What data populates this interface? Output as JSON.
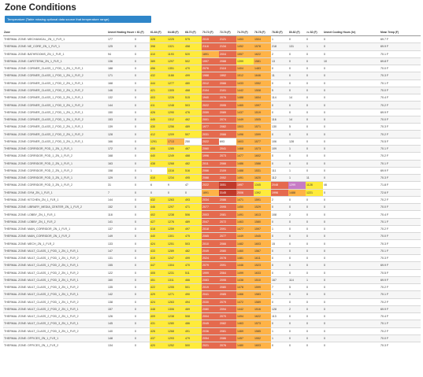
{
  "page": {
    "title": "Zone Conditions",
    "button_label": "Temperature (Table missing optional data source that temperature range)"
  },
  "table": {
    "columns": [
      "Zone",
      "Unmet Heating Hours (hr)",
      "< 61 (F)",
      "61-64 (F)",
      "64-68 (F)",
      "68-70 (F)",
      "70-72 (F)",
      "72-74 (F)",
      "74-76 (F)",
      "76-78 (F)",
      "78-80 (F)",
      "80-82 (F)",
      ">= 82 (F)",
      "Unmet Cooling Hours (hr)",
      "Mean Temp (F)"
    ],
    "rows": [
      {
        "zone": "THERMAL ZONE: MECHANICAL_ZN_1_FLR_1",
        "values": [
          "177",
          "0",
          "428",
          "1225",
          "575",
          "2015",
          "2121",
          "1453",
          "1504",
          "1",
          "0",
          "0",
          "0",
          "69.7 F"
        ]
      },
      {
        "zone": "THERMAL ZONE: NE_CORE_ZN_1_FLR_1",
        "values": [
          "125",
          "0",
          "398",
          "1321",
          "458",
          "2118",
          "2134",
          "1452",
          "1578",
          "218",
          "131",
          "1",
          "0",
          "69.9 F"
        ]
      },
      {
        "zone": "THERMAL ZONE: BATHROOMS_ZN_1_FLR_1",
        "values": [
          "94",
          "0",
          "410",
          "1193",
          "520",
          "1891",
          "2004",
          "1557",
          "1622",
          "2",
          "0",
          "0",
          "0",
          "70.1 F"
        ]
      },
      {
        "zone": "THERMAL ZONE: CAFETERIA_ZN_1_FLR_1",
        "values": [
          "136",
          "0",
          "389",
          "1297",
          "502",
          "1997",
          "2088",
          "1399",
          "1581",
          "13",
          "0",
          "0",
          "10",
          "69.8 F"
        ]
      },
      {
        "zone": "THERMAL ZONE: CORNER_CLASS_1_POD_1_ZN_1_FLR_1",
        "values": [
          "188",
          "0",
          "456",
          "1351",
          "470",
          "2076",
          "2118",
          "1404",
          "1483",
          "0",
          "0",
          "0",
          "0",
          "70.0 F"
        ]
      },
      {
        "zone": "THERMAL ZONE: CORNER_CLASS_1_POD_1_ZN_1_FLR_2",
        "values": [
          "171",
          "0",
          "432",
          "1188",
          "499",
          "1988",
          "1992",
          "1512",
          "1646",
          "11",
          "0",
          "0",
          "0",
          "70.3 F"
        ]
      },
      {
        "zone": "THERMAL ZONE: CORNER_CLASS_1_POD_2_ZN_1_FLR_1",
        "values": [
          "168",
          "0",
          "444",
          "1277",
          "480",
          "2012",
          "2066",
          "1433",
          "1552",
          "0",
          "0",
          "0",
          "0",
          "70.1 F"
        ]
      },
      {
        "zone": "THERMAL ZONE: CORNER_CLASS_1_POD_2_ZN_1_FLR_2",
        "values": [
          "146",
          "0",
          "421",
          "1305",
          "468",
          "2104",
          "2101",
          "1442",
          "1508",
          "5",
          "0",
          "0",
          "0",
          "70.0 F"
        ]
      },
      {
        "zone": "THERMAL ZONE: CORNER_CLASS_1_POD_3_ZN_1_FLR_1",
        "values": [
          "132",
          "0",
          "403",
          "1226",
          "515",
          "1940",
          "2076",
          "1488",
          "1604",
          "114",
          "14",
          "0",
          "0",
          "70.4 F"
        ]
      },
      {
        "zone": "THERMAL ZONE: CORNER_CLASS_1_POD_3_ZN_1_FLR_2",
        "values": [
          "144",
          "0",
          "411",
          "1248",
          "503",
          "2022",
          "2095",
          "1465",
          "1597",
          "0",
          "0",
          "0",
          "0",
          "70.2 F"
        ]
      },
      {
        "zone": "THERMAL ZONE: CORNER_CLASS_2_POD_1_ZN_1_FLR_1",
        "values": [
          "150",
          "0",
          "426",
          "1290",
          "476",
          "2059",
          "2089",
          "1437",
          "1519",
          "0",
          "0",
          "0",
          "0",
          "69.9 F"
        ]
      },
      {
        "zone": "THERMAL ZONE: CORNER_CLASS_2_POD_1_ZN_1_FLR_2",
        "values": [
          "153",
          "0",
          "445",
          "1312",
          "462",
          "2001",
          "2074",
          "1449",
          "1505",
          "116",
          "14",
          "0",
          "0",
          "70.0 F"
        ]
      },
      {
        "zone": "THERMAL ZONE: CORNER_CLASS_2_POD_2_ZN_1_FLR_1",
        "values": [
          "139",
          "0",
          "430",
          "1256",
          "489",
          "1977",
          "2082",
          "1503",
          "1571",
          "130",
          "5",
          "0",
          "0",
          "70.3 F"
        ]
      },
      {
        "zone": "THERMAL ZONE: CORNER_CLASS_2_POD_2_ZN_1_FLR_2",
        "values": [
          "128",
          "0",
          "412",
          "1209",
          "507",
          "2031",
          "2066",
          "1496",
          "1599",
          "0",
          "0",
          "0",
          "0",
          "70.2 F"
        ]
      },
      {
        "zone": "THERMAL ZONE: CORNER_CLASS_2_POD_3_ZN_1_FLR_1",
        "values": [
          "166",
          "0",
          "1291",
          "1713",
          "250",
          "2022",
          "693",
          "1603",
          "1577",
          "106",
          "128",
          "0",
          "0",
          "70.5 F"
        ]
      },
      {
        "zone": "THERMAL ZONE: CORRIDOR_POD_1_ZN_1_FLR_1",
        "values": [
          "172",
          "0",
          "455",
          "1285",
          "467",
          "2060",
          "2041",
          "1468",
          "1573",
          "109",
          "1",
          "0",
          "0",
          "70.1 F"
        ]
      },
      {
        "zone": "THERMAL ZONE: CORRIDOR_POD_1_ZN_1_FLR_2",
        "values": [
          "168",
          "0",
          "440",
          "1249",
          "488",
          "1996",
          "2073",
          "1477",
          "1602",
          "0",
          "0",
          "0",
          "0",
          "70.2 F"
        ]
      },
      {
        "zone": "THERMAL ZONE: CORRIDOR_POD_2_ZN_1_FLR_1",
        "values": [
          "163",
          "0",
          "438",
          "1268",
          "482",
          "2011",
          "2066",
          "1486",
          "1588",
          "0",
          "0",
          "0",
          "0",
          "70.1 F"
        ]
      },
      {
        "zone": "THERMAL ZONE: CORRIDOR_POD_2_ZN_1_FLR_2",
        "values": [
          "158",
          "0",
          "1",
          "1316",
          "516",
          "2066",
          "2109",
          "1488",
          "1531",
          "111",
          "1",
          "0",
          "0",
          "69.9 F"
        ]
      },
      {
        "zone": "THERMAL ZONE: CORRIDOR_POD_3_ZN_1_FLR_1",
        "values": [
          "129",
          "0",
          "410",
          "1234",
          "495",
          "2088",
          "2052",
          "1491",
          "1620",
          "112",
          "1",
          "11",
          "0",
          "70.3 F"
        ]
      },
      {
        "zone": "THERMAL ZONE: CORRIDOR_POD_3_ZN_1_FLR_2",
        "values": [
          "31",
          "0",
          "6",
          "9",
          "47",
          "2022",
          "3051",
          "1997",
          "1345",
          "2048",
          "1299",
          "1128",
          "46",
          "71.8 F"
        ]
      },
      {
        "zone": "THERMAL ZONE: GYM_ZN_1_FLR_1",
        "values": [
          "7",
          "0",
          "0",
          "0",
          "0",
          "1891",
          "3145",
          "2006",
          "1392",
          "1996",
          "1488",
          "1221",
          "0",
          "72.6 F"
        ]
      },
      {
        "zone": "THERMAL ZONE: KITCHEN_ZN_1_FLR_1",
        "values": [
          "144",
          "0",
          "432",
          "1263",
          "493",
          "2034",
          "2086",
          "1471",
          "1591",
          "2",
          "0",
          "0",
          "0",
          "70.2 F"
        ]
      },
      {
        "zone": "THERMAL ZONE: LIBRARY_MEDIA_CENTER_ZN_1_FLR_2",
        "values": [
          "152",
          "0",
          "446",
          "1297",
          "471",
          "2077",
          "2095",
          "1450",
          "1529",
          "0",
          "0",
          "0",
          "0",
          "70.0 F"
        ]
      },
      {
        "zone": "THERMAL ZONE: LOBBY_ZN_1_FLR_1",
        "values": [
          "118",
          "0",
          "402",
          "1238",
          "506",
          "2003",
          "2081",
          "1491",
          "1613",
          "108",
          "2",
          "0",
          "0",
          "70.4 F"
        ]
      },
      {
        "zone": "THERMAL ZONE: LOBBY_ZN_1_FLR_2",
        "values": [
          "141",
          "0",
          "427",
          "1276",
          "489",
          "2047",
          "2072",
          "1463",
          "1580",
          "0",
          "0",
          "0",
          "0",
          "70.1 F"
        ]
      },
      {
        "zone": "THERMAL ZONE: MAIN_CORRIDOR_ZN_1_FLR_1",
        "values": [
          "137",
          "0",
          "418",
          "1259",
          "497",
          "2018",
          "2091",
          "1477",
          "1597",
          "1",
          "0",
          "0",
          "0",
          "70.2 F"
        ]
      },
      {
        "zone": "THERMAL ZONE: MAIN_CORRIDOR_ZN_1_FLR_2",
        "values": [
          "149",
          "0",
          "440",
          "1301",
          "475",
          "2065",
          "2077",
          "1449",
          "1545",
          "0",
          "0",
          "0",
          "0",
          "70.0 F"
        ]
      },
      {
        "zone": "THERMAL ZONE: MECH_ZN_1_FLR_2",
        "values": [
          "133",
          "0",
          "424",
          "1251",
          "503",
          "2010",
          "2066",
          "1482",
          "1603",
          "15",
          "0",
          "0",
          "0",
          "70.3 F"
        ]
      },
      {
        "zone": "THERMAL ZONE: MULT_CLASS_1_POD_1_ZN_1_FLR_1",
        "values": [
          "147",
          "0",
          "433",
          "1289",
          "482",
          "2049",
          "2080",
          "1460",
          "1567",
          "0",
          "0",
          "0",
          "0",
          "70.1 F"
        ]
      },
      {
        "zone": "THERMAL ZONE: MULT_CLASS_1_POD_1_ZN_1_FLR_2",
        "values": [
          "131",
          "0",
          "419",
          "1247",
          "499",
          "2024",
          "2078",
          "1481",
          "1611",
          "0",
          "0",
          "0",
          "0",
          "70.3 F"
        ]
      },
      {
        "zone": "THERMAL ZONE: MULT_CLASS_1_POD_2_ZN_1_FLR_1",
        "values": [
          "155",
          "0",
          "447",
          "1304",
          "470",
          "2079",
          "2091",
          "1446",
          "1523",
          "0",
          "0",
          "0",
          "0",
          "69.9 F"
        ]
      },
      {
        "zone": "THERMAL ZONE: MULT_CLASS_1_POD_2_ZN_1_FLR_2",
        "values": [
          "122",
          "0",
          "405",
          "1231",
          "511",
          "1999",
          "2064",
          "1499",
          "1633",
          "0",
          "0",
          "0",
          "0",
          "70.5 F"
        ]
      },
      {
        "zone": "THERMAL ZONE: MULT_CLASS_1_POD_3_ZN_1_FLR_1",
        "values": [
          "160",
          "0",
          "451",
          "1311",
          "466",
          "2083",
          "2095",
          "1438",
          "1510",
          "167",
          "114",
          "1",
          "0",
          "69.9 F"
        ]
      },
      {
        "zone": "THERMAL ZONE: MULT_CLASS_1_POD_3_ZN_1_FLR_2",
        "values": [
          "135",
          "0",
          "422",
          "1255",
          "501",
          "2019",
          "2080",
          "1478",
          "1599",
          "7",
          "5",
          "0",
          "0",
          "70.2 F"
        ]
      },
      {
        "zone": "THERMAL ZONE: MULT_CLASS_2_POD_1_ZN_1_FLR_1",
        "values": [
          "142",
          "0",
          "429",
          "1271",
          "490",
          "2041",
          "2085",
          "1466",
          "1583",
          "1",
          "0",
          "0",
          "0",
          "70.1 F"
        ]
      },
      {
        "zone": "THERMAL ZONE: MULT_CLASS_2_POD_1_ZN_1_FLR_2",
        "values": [
          "138",
          "0",
          "424",
          "1263",
          "494",
          "2030",
          "2079",
          "1472",
          "1589",
          "0",
          "0",
          "0",
          "0",
          "70.2 F"
        ]
      },
      {
        "zone": "THERMAL ZONE: MULT_CLASS_2_POD_2_ZN_1_FLR_1",
        "values": [
          "157",
          "0",
          "448",
          "1306",
          "469",
          "2080",
          "2094",
          "1442",
          "1516",
          "128",
          "2",
          "0",
          "0",
          "69.9 F"
        ]
      },
      {
        "zone": "THERMAL ZONE: MULT_CLASS_2_POD_2_ZN_1_FLR_2",
        "values": [
          "126",
          "0",
          "409",
          "1238",
          "508",
          "2004",
          "2070",
          "1494",
          "1622",
          "113",
          "0",
          "0",
          "0",
          "70.4 F"
        ]
      },
      {
        "zone": "THERMAL ZONE: MULT_CLASS_2_POD_3_ZN_1_FLR_1",
        "values": [
          "145",
          "0",
          "431",
          "1280",
          "486",
          "2045",
          "2082",
          "1463",
          "1573",
          "0",
          "0",
          "0",
          "0",
          "70.1 F"
        ]
      },
      {
        "zone": "THERMAL ZONE: MULT_CLASS_2_POD_3_ZN_1_FLR_2",
        "values": [
          "140",
          "0",
          "426",
          "1268",
          "491",
          "2036",
          "2081",
          "1469",
          "1585",
          "1",
          "0",
          "0",
          "0",
          "70.2 F"
        ]
      },
      {
        "zone": "THERMAL ZONE: OFFICES_ZN_1_FLR_1",
        "values": [
          "148",
          "0",
          "437",
          "1293",
          "479",
          "2054",
          "2086",
          "1457",
          "1552",
          "1",
          "0",
          "0",
          "0",
          "70.0 F"
        ]
      },
      {
        "zone": "THERMAL ZONE: OFFICES_ZN_1_FLR_2",
        "values": [
          "134",
          "0",
          "420",
          "1252",
          "500",
          "2021",
          "2076",
          "1480",
          "1603",
          "0",
          "0",
          "0",
          "0",
          "70.3 F"
        ]
      }
    ]
  },
  "colors": {
    "button": "#2f86c9",
    "yellow": "#ffeb3b",
    "orange": "#ffb347",
    "red": "#e56a4e",
    "dark_red": "#c0392b",
    "purple": "#c77bc5"
  }
}
